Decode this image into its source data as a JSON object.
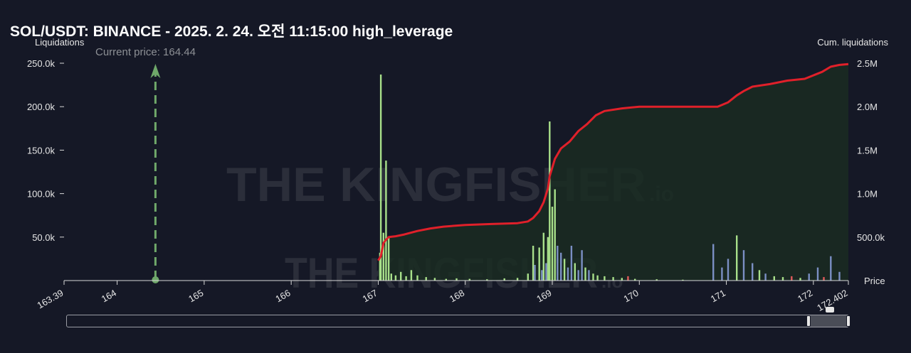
{
  "header": {
    "title": "SOL/USDT: BINANCE - 2025. 2. 24. 오전 11:15:00 high_leverage",
    "left_axis_name": "Liquidations",
    "right_axis_name": "Cum. liquidations",
    "x_axis_name": "Price",
    "current_price_label": "Current price: 164.44"
  },
  "watermark": {
    "brand": "THE KINGFISHER",
    "suffix": ".io"
  },
  "colors": {
    "background": "#151826",
    "cumulative_line": "#e0202a",
    "cumulative_fill": "#1a2c22",
    "bar_green": "#a8e08a",
    "bar_blue": "#7b8fc4",
    "bar_red": "#e05a5a",
    "current_price_marker": "#6fa86a"
  },
  "chart_data": {
    "type": "bar",
    "title": "SOL/USDT: BINANCE - 2025. 2. 24. 오전 11:15:00 high_leverage",
    "xlabel": "Price",
    "ylabel": "Liquidations",
    "y2label": "Cum. liquidations",
    "xlim": [
      163.39,
      172.402
    ],
    "ylim": [
      0,
      250000
    ],
    "y2lim": [
      0,
      2500000
    ],
    "x_ticks": [
      {
        "value": 163.39,
        "label": "163.39"
      },
      {
        "value": 164,
        "label": "164"
      },
      {
        "value": 165,
        "label": "165"
      },
      {
        "value": 166,
        "label": "166"
      },
      {
        "value": 167,
        "label": "167"
      },
      {
        "value": 168,
        "label": "168"
      },
      {
        "value": 169,
        "label": "169"
      },
      {
        "value": 170,
        "label": "170"
      },
      {
        "value": 171,
        "label": "171"
      },
      {
        "value": 172,
        "label": "172"
      },
      {
        "value": 172.402,
        "label": "172.402"
      }
    ],
    "y_ticks": [
      {
        "value": 50000,
        "label": "50.0k"
      },
      {
        "value": 100000,
        "label": "100.0k"
      },
      {
        "value": 150000,
        "label": "150.0k"
      },
      {
        "value": 200000,
        "label": "200.0k"
      },
      {
        "value": 250000,
        "label": "250.0k"
      }
    ],
    "y2_ticks": [
      {
        "value": 500000,
        "label": "500.0k"
      },
      {
        "value": 1000000,
        "label": "1.0M"
      },
      {
        "value": 1500000,
        "label": "1.5M"
      },
      {
        "value": 2000000,
        "label": "2.0M"
      },
      {
        "value": 2500000,
        "label": "2.5M"
      }
    ],
    "current_price": 164.44,
    "bars": [
      {
        "x": 167.03,
        "y": 237000,
        "c": "g"
      },
      {
        "x": 167.06,
        "y": 55000,
        "c": "g"
      },
      {
        "x": 167.09,
        "y": 138000,
        "c": "g"
      },
      {
        "x": 167.12,
        "y": 50000,
        "c": "g"
      },
      {
        "x": 167.02,
        "y": 32000,
        "c": "g"
      },
      {
        "x": 167.15,
        "y": 8000,
        "c": "g"
      },
      {
        "x": 167.2,
        "y": 6000,
        "c": "g"
      },
      {
        "x": 167.26,
        "y": 10000,
        "c": "g"
      },
      {
        "x": 167.32,
        "y": 5000,
        "c": "g"
      },
      {
        "x": 167.38,
        "y": 12000,
        "c": "g"
      },
      {
        "x": 167.45,
        "y": 6000,
        "c": "g"
      },
      {
        "x": 167.55,
        "y": 4000,
        "c": "g"
      },
      {
        "x": 167.65,
        "y": 3000,
        "c": "g"
      },
      {
        "x": 167.78,
        "y": 2000,
        "c": "g"
      },
      {
        "x": 167.9,
        "y": 2500,
        "c": "g"
      },
      {
        "x": 168.05,
        "y": 2000,
        "c": "g"
      },
      {
        "x": 168.25,
        "y": 1500,
        "c": "g"
      },
      {
        "x": 168.45,
        "y": 2500,
        "c": "g"
      },
      {
        "x": 168.6,
        "y": 3000,
        "c": "g"
      },
      {
        "x": 168.72,
        "y": 8000,
        "c": "g"
      },
      {
        "x": 168.78,
        "y": 40000,
        "c": "g"
      },
      {
        "x": 168.8,
        "y": 18000,
        "c": "b"
      },
      {
        "x": 168.85,
        "y": 38000,
        "c": "g"
      },
      {
        "x": 168.88,
        "y": 12000,
        "c": "b"
      },
      {
        "x": 168.9,
        "y": 55000,
        "c": "g"
      },
      {
        "x": 168.93,
        "y": 20000,
        "c": "b"
      },
      {
        "x": 168.95,
        "y": 50000,
        "c": "g"
      },
      {
        "x": 168.97,
        "y": 183000,
        "c": "g"
      },
      {
        "x": 169.0,
        "y": 85000,
        "c": "g"
      },
      {
        "x": 169.03,
        "y": 105000,
        "c": "g"
      },
      {
        "x": 169.06,
        "y": 40000,
        "c": "b"
      },
      {
        "x": 169.1,
        "y": 32000,
        "c": "b"
      },
      {
        "x": 169.14,
        "y": 25000,
        "c": "g"
      },
      {
        "x": 169.18,
        "y": 15000,
        "c": "b"
      },
      {
        "x": 169.22,
        "y": 40000,
        "c": "b"
      },
      {
        "x": 169.26,
        "y": 20000,
        "c": "g"
      },
      {
        "x": 169.3,
        "y": 12000,
        "c": "b"
      },
      {
        "x": 169.34,
        "y": 35000,
        "c": "b"
      },
      {
        "x": 169.38,
        "y": 15000,
        "c": "g"
      },
      {
        "x": 169.42,
        "y": 12000,
        "c": "b"
      },
      {
        "x": 169.47,
        "y": 8000,
        "c": "g"
      },
      {
        "x": 169.52,
        "y": 6000,
        "c": "g"
      },
      {
        "x": 169.6,
        "y": 5000,
        "c": "g"
      },
      {
        "x": 169.7,
        "y": 4000,
        "c": "g"
      },
      {
        "x": 169.8,
        "y": 3000,
        "c": "g"
      },
      {
        "x": 169.87,
        "y": 5000,
        "c": "r"
      },
      {
        "x": 169.95,
        "y": 2000,
        "c": "g"
      },
      {
        "x": 170.2,
        "y": 1500,
        "c": "g"
      },
      {
        "x": 170.5,
        "y": 1000,
        "c": "g"
      },
      {
        "x": 170.85,
        "y": 42000,
        "c": "b"
      },
      {
        "x": 170.95,
        "y": 15000,
        "c": "b"
      },
      {
        "x": 171.02,
        "y": 25000,
        "c": "b"
      },
      {
        "x": 171.12,
        "y": 52000,
        "c": "g"
      },
      {
        "x": 171.2,
        "y": 35000,
        "c": "b"
      },
      {
        "x": 171.3,
        "y": 20000,
        "c": "b"
      },
      {
        "x": 171.38,
        "y": 12000,
        "c": "g"
      },
      {
        "x": 171.45,
        "y": 8000,
        "c": "b"
      },
      {
        "x": 171.55,
        "y": 5000,
        "c": "g"
      },
      {
        "x": 171.65,
        "y": 4000,
        "c": "g"
      },
      {
        "x": 171.75,
        "y": 5000,
        "c": "r"
      },
      {
        "x": 171.85,
        "y": 3000,
        "c": "g"
      },
      {
        "x": 171.95,
        "y": 8000,
        "c": "b"
      },
      {
        "x": 172.05,
        "y": 15000,
        "c": "b"
      },
      {
        "x": 172.12,
        "y": 4000,
        "c": "r"
      },
      {
        "x": 172.2,
        "y": 28000,
        "c": "b"
      },
      {
        "x": 172.3,
        "y": 10000,
        "c": "b"
      }
    ],
    "cumulative": [
      [
        167.0,
        230000
      ],
      [
        167.03,
        280000
      ],
      [
        167.06,
        430000
      ],
      [
        167.09,
        470000
      ],
      [
        167.12,
        500000
      ],
      [
        167.2,
        510000
      ],
      [
        167.3,
        530000
      ],
      [
        167.45,
        570000
      ],
      [
        167.6,
        600000
      ],
      [
        167.75,
        620000
      ],
      [
        168.0,
        640000
      ],
      [
        168.3,
        650000
      ],
      [
        168.6,
        660000
      ],
      [
        168.72,
        680000
      ],
      [
        168.78,
        720000
      ],
      [
        168.85,
        800000
      ],
      [
        168.9,
        900000
      ],
      [
        168.95,
        1060000
      ],
      [
        168.97,
        1200000
      ],
      [
        169.0,
        1300000
      ],
      [
        169.03,
        1400000
      ],
      [
        169.1,
        1520000
      ],
      [
        169.2,
        1600000
      ],
      [
        169.3,
        1720000
      ],
      [
        169.4,
        1800000
      ],
      [
        169.5,
        1900000
      ],
      [
        169.6,
        1950000
      ],
      [
        169.8,
        1980000
      ],
      [
        170.0,
        2000000
      ],
      [
        170.5,
        2000000
      ],
      [
        170.9,
        2000000
      ],
      [
        171.02,
        2050000
      ],
      [
        171.12,
        2130000
      ],
      [
        171.2,
        2180000
      ],
      [
        171.3,
        2230000
      ],
      [
        171.5,
        2260000
      ],
      [
        171.7,
        2300000
      ],
      [
        171.9,
        2320000
      ],
      [
        172.0,
        2360000
      ],
      [
        172.1,
        2400000
      ],
      [
        172.2,
        2460000
      ],
      [
        172.3,
        2480000
      ],
      [
        172.402,
        2490000
      ]
    ]
  }
}
